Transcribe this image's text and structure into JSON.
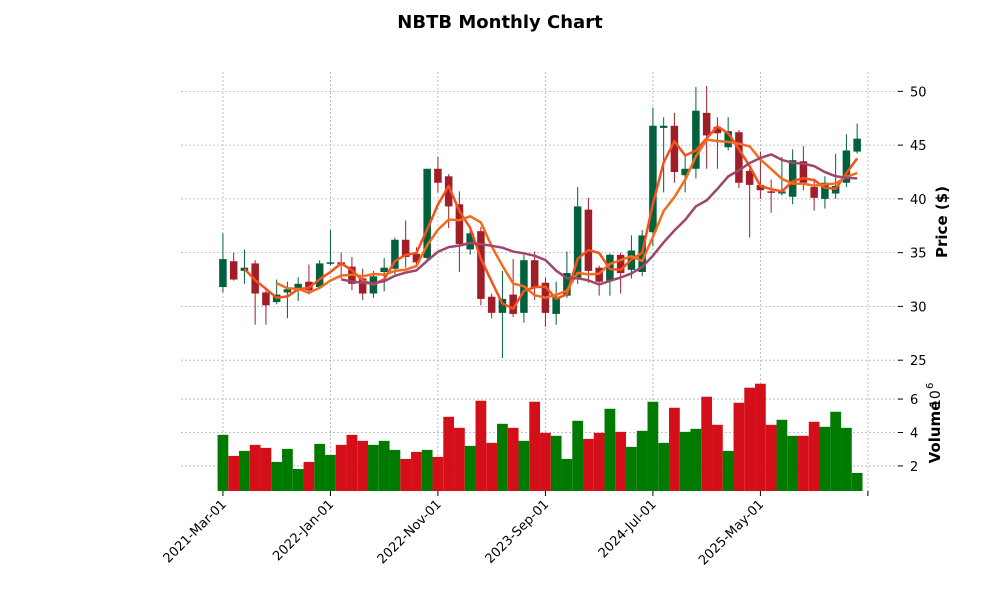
{
  "chart_data": {
    "type": "candlestick",
    "title": "NBTB Monthly Chart",
    "price_panel": {
      "ylabel": "Price ($)",
      "ylim": [
        23.9,
        51.8
      ],
      "yticks": [
        25,
        30,
        35,
        40,
        45,
        50
      ],
      "grid": true
    },
    "volume_panel": {
      "ylabel": "Volume",
      "scale_label": "10",
      "scale_exp": "6",
      "ylim": [
        0.5,
        7.5
      ],
      "yticks": [
        2,
        4,
        6
      ],
      "grid": true
    },
    "x_range": [
      -3.9,
      62.8
    ],
    "xticks": [
      {
        "index": 0,
        "label": "2021-Mar-01"
      },
      {
        "index": 10,
        "label": "2022-Jan-01"
      },
      {
        "index": 20,
        "label": "2022-Nov-01"
      },
      {
        "index": 30,
        "label": "2023-Sep-01"
      },
      {
        "index": 40,
        "label": "2024-Jul-01"
      },
      {
        "index": 50,
        "label": "2025-May-01"
      },
      {
        "index": 60,
        "label": ""
      }
    ],
    "moving_averages": [
      {
        "window": 3,
        "color": "#f4511e"
      },
      {
        "window": 6,
        "color": "#f46a1e"
      },
      {
        "window": 12,
        "color": "#a0466e"
      }
    ],
    "colors": {
      "up": "#00613c",
      "down": "#a01e28",
      "vol_up": "#007a00",
      "vol_down": "#d40f1a"
    },
    "ohlc": [
      [
        31.8,
        36.8,
        31.3,
        34.4
      ],
      [
        34.2,
        35.0,
        32.4,
        32.5
      ],
      [
        33.3,
        35.3,
        32.1,
        33.6
      ],
      [
        34.0,
        34.3,
        28.3,
        31.2
      ],
      [
        31.3,
        31.5,
        28.3,
        30.1
      ],
      [
        30.4,
        32.5,
        30.2,
        31.1
      ],
      [
        31.3,
        32.3,
        28.9,
        31.6
      ],
      [
        31.7,
        32.7,
        30.5,
        32.1
      ],
      [
        32.3,
        33.9,
        31.1,
        31.5
      ],
      [
        31.8,
        34.3,
        31.6,
        34.0
      ],
      [
        34.0,
        37.1,
        33.8,
        34.1
      ],
      [
        34.1,
        35.0,
        32.6,
        33.9
      ],
      [
        33.7,
        34.6,
        31.5,
        32.1
      ],
      [
        32.6,
        33.5,
        30.6,
        31.2
      ],
      [
        31.2,
        33.3,
        30.8,
        32.8
      ],
      [
        33.2,
        34.5,
        31.4,
        33.6
      ],
      [
        33.5,
        36.4,
        33.0,
        36.2
      ],
      [
        36.2,
        38.0,
        33.6,
        34.6
      ],
      [
        34.9,
        35.5,
        33.9,
        34.1
      ],
      [
        34.5,
        42.8,
        34.2,
        42.8
      ],
      [
        42.8,
        43.9,
        40.6,
        41.5
      ],
      [
        42.1,
        42.3,
        37.3,
        39.3
      ],
      [
        39.5,
        40.7,
        33.2,
        35.8
      ],
      [
        35.3,
        37.4,
        34.8,
        36.8
      ],
      [
        37.0,
        37.4,
        30.1,
        30.7
      ],
      [
        30.9,
        31.2,
        28.9,
        29.4
      ],
      [
        29.4,
        33.3,
        25.2,
        30.7
      ],
      [
        31.1,
        34.4,
        29.0,
        29.3
      ],
      [
        29.4,
        34.8,
        28.5,
        34.3
      ],
      [
        34.3,
        35.1,
        30.6,
        31.8
      ],
      [
        32.2,
        32.7,
        28.1,
        29.4
      ],
      [
        29.3,
        32.3,
        28.3,
        30.9
      ],
      [
        31.0,
        35.1,
        30.8,
        33.1
      ],
      [
        32.7,
        41.1,
        32.1,
        39.3
      ],
      [
        39.0,
        40.1,
        32.2,
        33.3
      ],
      [
        33.6,
        33.8,
        31.0,
        32.3
      ],
      [
        32.4,
        34.9,
        31.0,
        34.8
      ],
      [
        34.8,
        35.0,
        31.2,
        33.1
      ],
      [
        33.4,
        36.6,
        32.6,
        35.2
      ],
      [
        33.2,
        37.1,
        32.8,
        36.6
      ],
      [
        36.9,
        48.5,
        35.6,
        46.8
      ],
      [
        46.6,
        47.6,
        40.6,
        46.8
      ],
      [
        46.8,
        48.0,
        41.5,
        42.5
      ],
      [
        42.2,
        44.0,
        40.6,
        42.8
      ],
      [
        42.8,
        50.4,
        41.9,
        48.2
      ],
      [
        48.0,
        50.5,
        42.8,
        45.9
      ],
      [
        46.7,
        47.6,
        42.8,
        46.1
      ],
      [
        44.8,
        47.6,
        44.5,
        46.3
      ],
      [
        46.2,
        46.4,
        41.0,
        41.5
      ],
      [
        42.6,
        42.8,
        36.4,
        41.3
      ],
      [
        41.3,
        44.4,
        40.0,
        40.8
      ],
      [
        40.7,
        41.8,
        38.7,
        40.6
      ],
      [
        40.5,
        43.9,
        40.3,
        40.7
      ],
      [
        40.2,
        44.6,
        39.5,
        43.6
      ],
      [
        43.5,
        44.9,
        40.8,
        41.5
      ],
      [
        41.1,
        41.9,
        38.9,
        40.1
      ],
      [
        40.0,
        42.1,
        39.1,
        41.5
      ],
      [
        40.5,
        44.2,
        40.0,
        41.2
      ],
      [
        41.5,
        46.0,
        41.1,
        44.5
      ],
      [
        44.4,
        47.0,
        44.2,
        45.6
      ]
    ],
    "volume": [
      3.86,
      2.6,
      2.9,
      3.26,
      3.08,
      2.24,
      3.02,
      1.82,
      2.24,
      3.32,
      2.66,
      3.26,
      3.86,
      3.5,
      3.26,
      3.5,
      2.96,
      2.42,
      2.84,
      2.96,
      2.54,
      4.94,
      4.28,
      3.2,
      5.9,
      3.38,
      4.52,
      4.28,
      3.5,
      5.84,
      3.98,
      3.8,
      2.42,
      4.7,
      3.62,
      3.98,
      5.42,
      4.04,
      3.14,
      4.1,
      5.84,
      3.38,
      5.48,
      4.04,
      4.22,
      6.14,
      4.46,
      2.9,
      5.78,
      6.68,
      6.92,
      4.46,
      4.76,
      3.8,
      3.8,
      4.64,
      4.34,
      5.24,
      4.28,
      1.58
    ]
  }
}
